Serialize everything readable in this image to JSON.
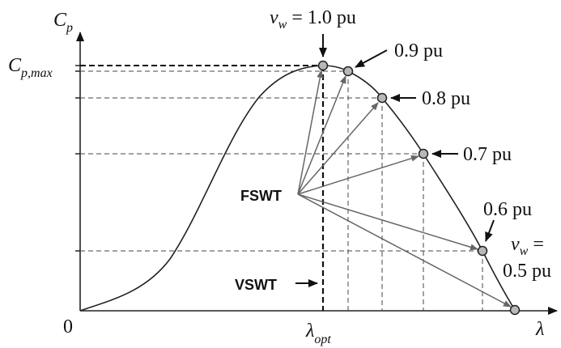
{
  "axes": {
    "y_label_main": "C",
    "y_label_sub": "p",
    "x_label": "λ",
    "origin": "0",
    "cpmax_main": "C",
    "cpmax_sub": "p,max",
    "lambda_main": "λ",
    "lambda_sub": "opt"
  },
  "labels": {
    "fswt": "FSWT",
    "vswt": "VSWT",
    "v10_main": "v",
    "v10_sub": "w",
    "v10_tail": " = 1.0 pu",
    "v09": "0.9 pu",
    "v08": "0.8 pu",
    "v07": "0.7 pu",
    "v06": "0.6 pu",
    "v05a_main": "v",
    "v05a_sub": "w",
    "v05a_tail": " =",
    "v05b": "0.5 pu"
  },
  "colors": {
    "curve": "#222222",
    "arrow": "#666666",
    "dot_fill": "#b8b8b8",
    "dash": "#333333"
  }
}
